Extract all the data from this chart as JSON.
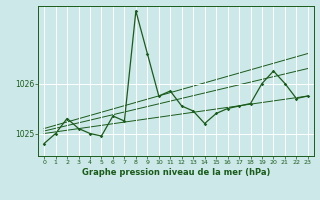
{
  "title": "Graphe pression niveau de la mer (hPa)",
  "bg_color": "#cce8e8",
  "grid_color": "#ffffff",
  "line_color": "#1a5c1a",
  "xlim": [
    -0.5,
    23.5
  ],
  "ylim": [
    1024.55,
    1027.55
  ],
  "yticks": [
    1025,
    1026
  ],
  "xticks": [
    0,
    1,
    2,
    3,
    4,
    5,
    6,
    7,
    8,
    9,
    10,
    11,
    12,
    13,
    14,
    15,
    16,
    17,
    18,
    19,
    20,
    21,
    22,
    23
  ],
  "hours": [
    0,
    1,
    2,
    3,
    4,
    5,
    6,
    7,
    8,
    9,
    10,
    11,
    12,
    13,
    14,
    15,
    16,
    17,
    18,
    19,
    20,
    21,
    22,
    23
  ],
  "pressure": [
    1024.8,
    1025.0,
    1025.3,
    1025.1,
    1025.0,
    1024.95,
    1025.35,
    1025.25,
    1027.45,
    1026.6,
    1025.75,
    1025.85,
    1025.55,
    1025.45,
    1025.2,
    1025.4,
    1025.5,
    1025.55,
    1025.6,
    1026.0,
    1026.25,
    1026.0,
    1025.7,
    1025.75
  ],
  "trend1_x": [
    0,
    23
  ],
  "trend1_y": [
    1025.0,
    1025.75
  ],
  "trend2_x": [
    0,
    23
  ],
  "trend2_y": [
    1025.05,
    1026.3
  ],
  "trend3_x": [
    0,
    23
  ],
  "trend3_y": [
    1025.1,
    1026.6
  ]
}
